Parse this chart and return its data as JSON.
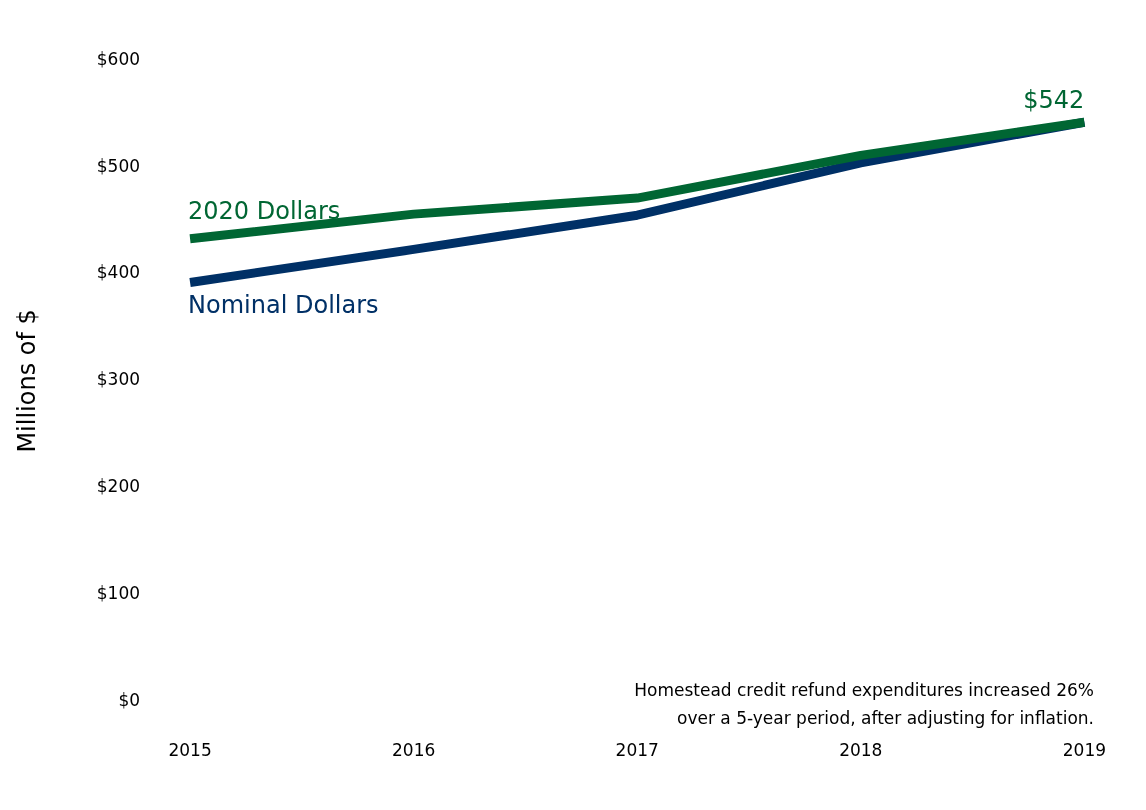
{
  "chart_data": {
    "type": "line",
    "ylabel": "Millions of $",
    "categories": [
      "2015",
      "2016",
      "2017",
      "2018",
      "2019"
    ],
    "series": [
      {
        "name": "2020 Dollars",
        "color": "#006633",
        "values": [
          433,
          456,
          471,
          511,
          542
        ],
        "value_labels": [
          null,
          null,
          null,
          null,
          "$542"
        ]
      },
      {
        "name": "Nominal Dollars",
        "color": "#003066",
        "values": [
          392,
          423,
          455,
          504,
          542
        ]
      }
    ],
    "ylim": [
      0,
      600
    ],
    "yticks": [
      {
        "value": 0,
        "label": "$0"
      },
      {
        "value": 100,
        "label": "$100"
      },
      {
        "value": 200,
        "label": "$200"
      },
      {
        "value": 300,
        "label": "$300"
      },
      {
        "value": 400,
        "label": "$400"
      },
      {
        "value": 500,
        "label": "$500"
      },
      {
        "value": 600,
        "label": "$600"
      }
    ],
    "grid": false,
    "legend": false,
    "marker": "none",
    "line_style": "solid",
    "annotations": [
      "Homestead credit refund expenditures increased 26% over a 5-year period, after adjusting for inflation."
    ]
  }
}
